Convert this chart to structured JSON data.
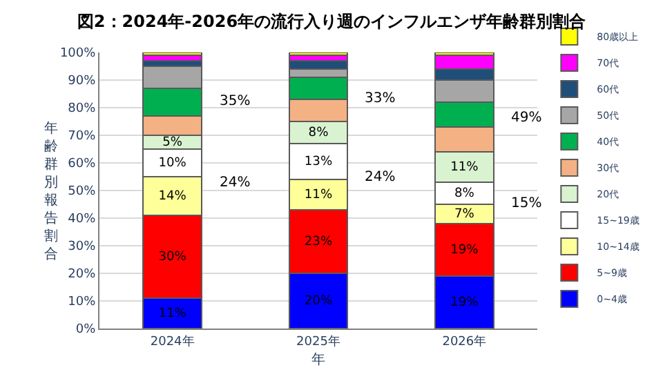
{
  "chart_data": {
    "type": "bar",
    "stacked": true,
    "title": "図2：2024年-2026年の流行入り週のインフルエンザ年齢群別割合",
    "xlabel": "年",
    "ylabel": "年齢群別報告割合",
    "categories": [
      "2024年",
      "2025年",
      "2026年"
    ],
    "series": [
      {
        "name": "0~4歳",
        "color": "#0000ff",
        "values": [
          11,
          20,
          19
        ],
        "value_labels": [
          "11%",
          "20%",
          "19%"
        ]
      },
      {
        "name": "5~9歳",
        "color": "#ff0000",
        "values": [
          30,
          23,
          19
        ],
        "value_labels": [
          "30%",
          "23%",
          "19%"
        ]
      },
      {
        "name": "10~14歳",
        "color": "#ffff99",
        "values": [
          14,
          11,
          7
        ],
        "value_labels": [
          "14%",
          "11%",
          "7%"
        ]
      },
      {
        "name": "15~19歳",
        "color": "#ffffff",
        "values": [
          10,
          13,
          8
        ],
        "value_labels": [
          "10%",
          "13%",
          "8%"
        ]
      },
      {
        "name": "20代",
        "color": "#d9f2d0",
        "values": [
          5,
          8,
          11
        ],
        "value_labels": [
          "5%",
          "8%",
          "11%"
        ]
      },
      {
        "name": "30代",
        "color": "#f4b183",
        "values": [
          7,
          8,
          9
        ]
      },
      {
        "name": "40代",
        "color": "#00b050",
        "values": [
          10,
          8,
          9
        ]
      },
      {
        "name": "50代",
        "color": "#a6a6a6",
        "values": [
          8,
          3,
          8
        ]
      },
      {
        "name": "60代",
        "color": "#1f4e79",
        "values": [
          2,
          3,
          4
        ]
      },
      {
        "name": "70代",
        "color": "#ff00ff",
        "values": [
          2,
          2,
          5
        ]
      },
      {
        "name": "80歳以上",
        "color": "#ffff00",
        "values": [
          1,
          1,
          1
        ]
      }
    ],
    "annotations": [
      "35%",
      "24%",
      "33%",
      "24%",
      "49%",
      "15%"
    ],
    "ylim": [
      0,
      100
    ],
    "yticks": [
      {
        "value": 0,
        "label": "0%"
      },
      {
        "value": 10,
        "label": "10%"
      },
      {
        "value": 20,
        "label": "20%"
      },
      {
        "value": 30,
        "label": "30%"
      },
      {
        "value": 40,
        "label": "40%"
      },
      {
        "value": 50,
        "label": "50%"
      },
      {
        "value": 60,
        "label": "60%"
      },
      {
        "value": 70,
        "label": "70%"
      },
      {
        "value": 80,
        "label": "80%"
      },
      {
        "value": 90,
        "label": "90%"
      },
      {
        "value": 100,
        "label": "100%"
      }
    ],
    "grid": "y",
    "legend": "right"
  }
}
